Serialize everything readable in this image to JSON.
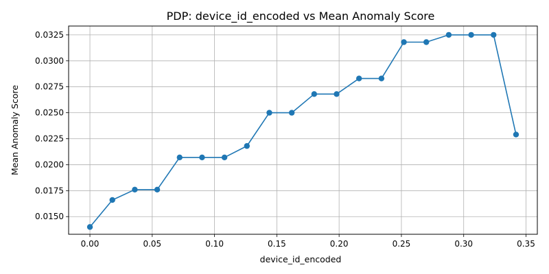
{
  "chart_data": {
    "type": "line",
    "title": "PDP: device_id_encoded vs Mean Anomaly Score",
    "xlabel": "device_id_encoded",
    "ylabel": "Mean Anomaly Score",
    "xlim": [
      -0.0171,
      0.3591
    ],
    "ylim": [
      0.0133,
      0.03335
    ],
    "grid": true,
    "marker": "circle",
    "color": "#1f77b4",
    "x_ticks": [
      0.0,
      0.05,
      0.1,
      0.15,
      0.2,
      0.25,
      0.3,
      0.35
    ],
    "x_tick_labels": [
      "0.00",
      "0.05",
      "0.10",
      "0.15",
      "0.20",
      "0.25",
      "0.30",
      "0.35"
    ],
    "y_ticks": [
      0.015,
      0.0175,
      0.02,
      0.0225,
      0.025,
      0.0275,
      0.03,
      0.0325
    ],
    "y_tick_labels": [
      "0.0150",
      "0.0175",
      "0.0200",
      "0.0225",
      "0.0250",
      "0.0275",
      "0.0300",
      "0.0325"
    ],
    "x": [
      0.0,
      0.018,
      0.036,
      0.054,
      0.072,
      0.09,
      0.108,
      0.126,
      0.144,
      0.162,
      0.18,
      0.198,
      0.216,
      0.234,
      0.252,
      0.27,
      0.288,
      0.306,
      0.324,
      0.342
    ],
    "y": [
      0.014,
      0.0166,
      0.0176,
      0.0176,
      0.0207,
      0.0207,
      0.0207,
      0.0218,
      0.025,
      0.025,
      0.0268,
      0.0268,
      0.0283,
      0.0283,
      0.0318,
      0.0318,
      0.0325,
      0.0325,
      0.0325,
      0.0229
    ]
  }
}
